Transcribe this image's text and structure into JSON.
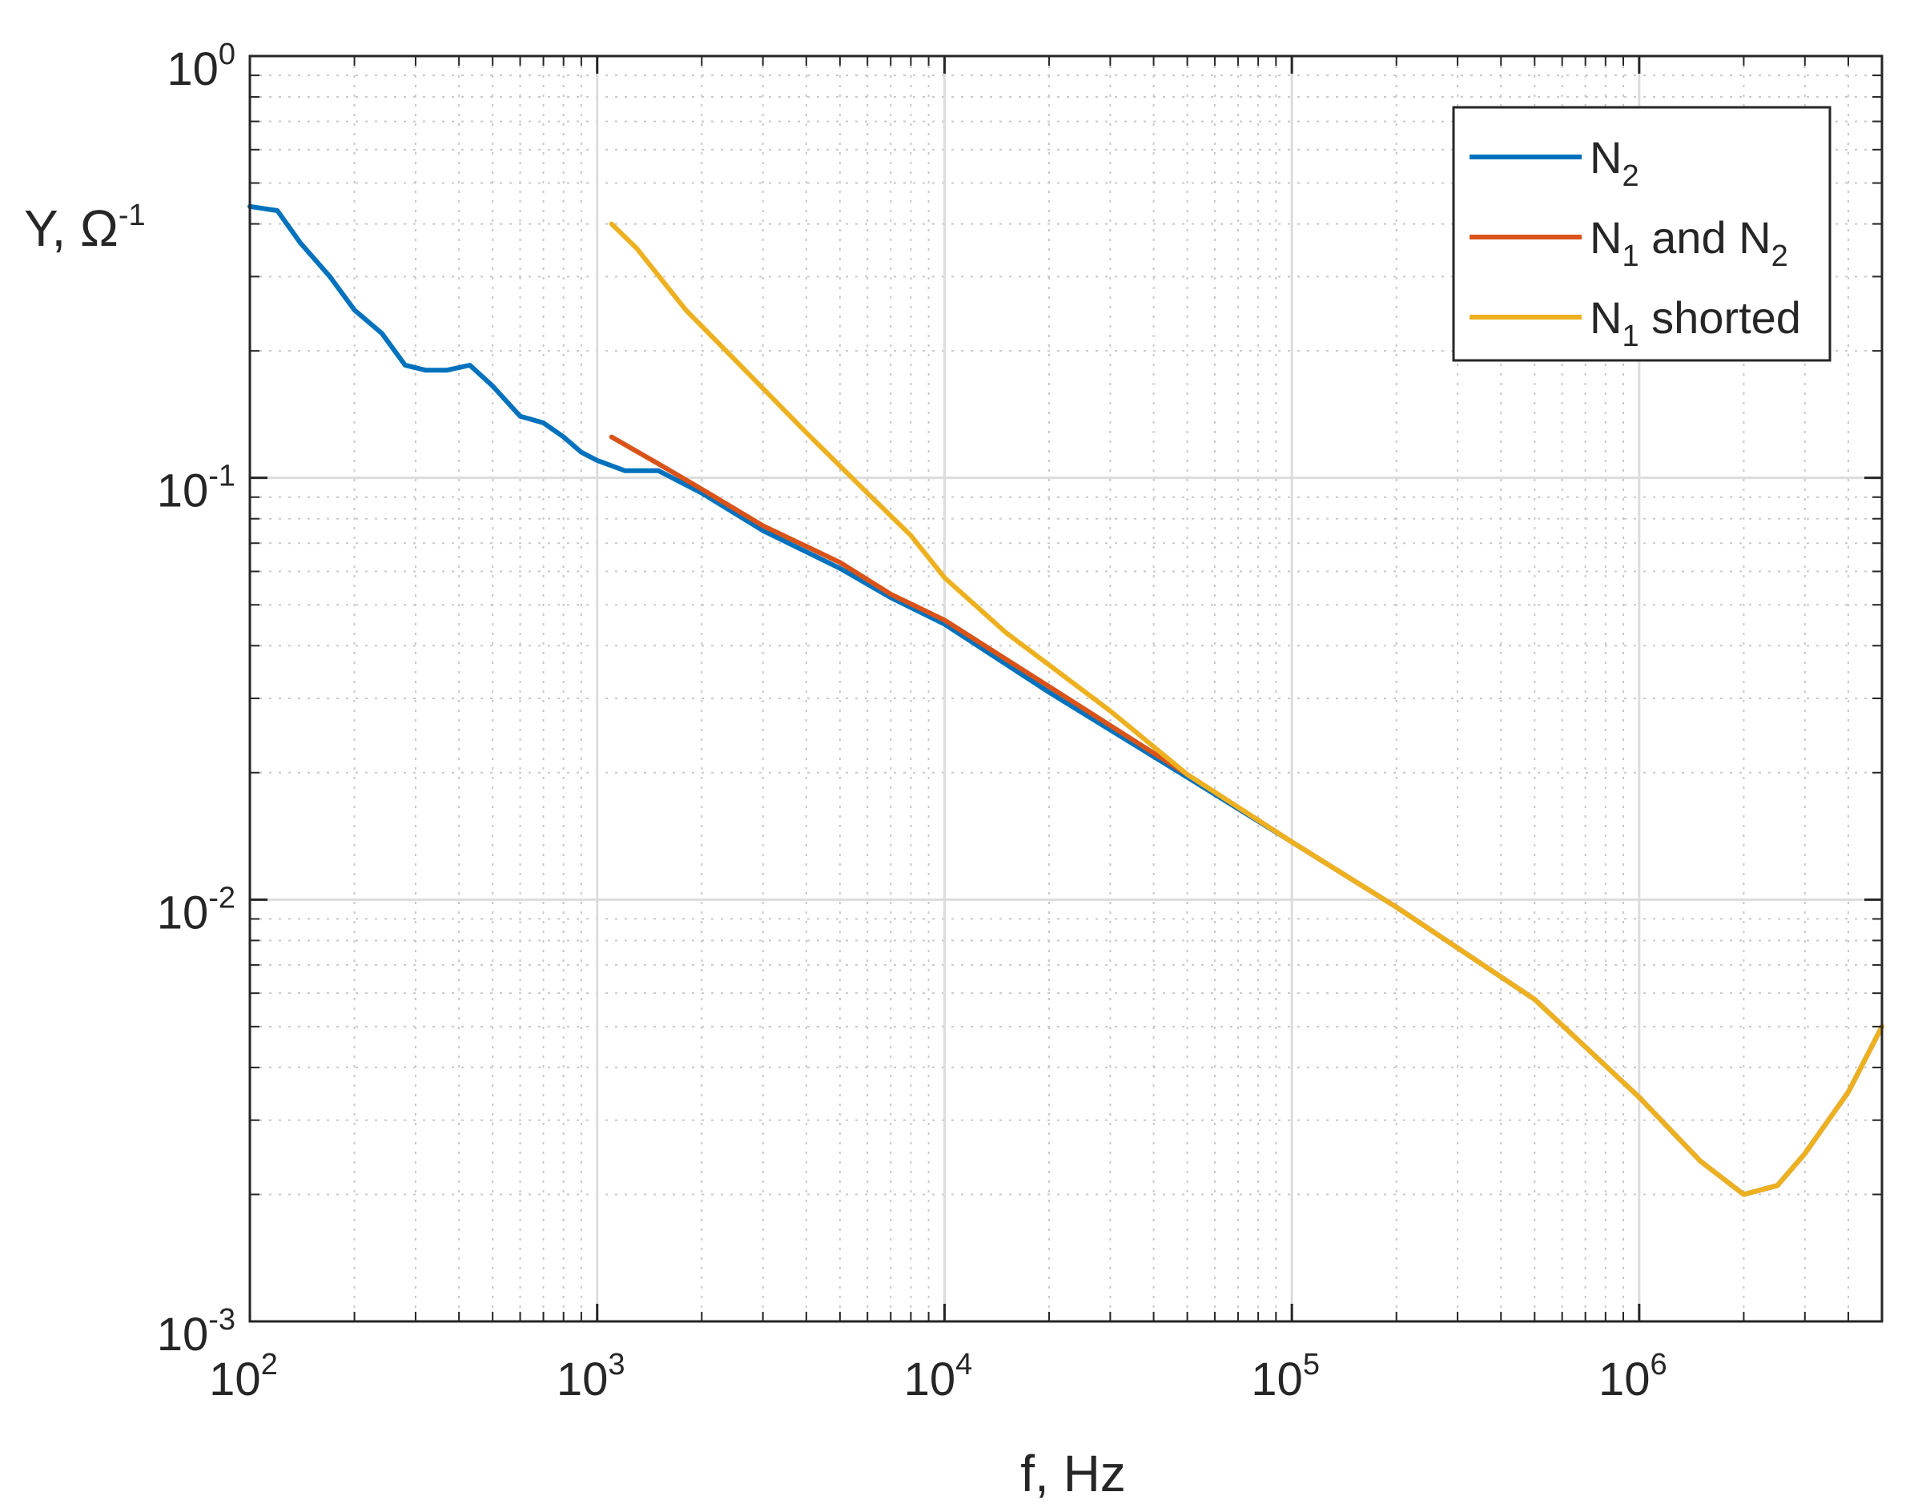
{
  "chart_data": {
    "type": "line",
    "title": "",
    "xlabel": "f, Hz",
    "ylabel": {
      "base": "Y, Ω",
      "sup": "-1"
    },
    "xscale": "log",
    "yscale": "log",
    "xlim": [
      100,
      5000000
    ],
    "ylim": [
      0.001,
      1
    ],
    "grid": true,
    "legend_position": "top-right",
    "x_ticks": [
      {
        "value": 100,
        "base": "10",
        "exp": "2"
      },
      {
        "value": 1000,
        "base": "10",
        "exp": "3"
      },
      {
        "value": 10000,
        "base": "10",
        "exp": "4"
      },
      {
        "value": 100000,
        "base": "10",
        "exp": "5"
      },
      {
        "value": 1000000,
        "base": "10",
        "exp": "6"
      }
    ],
    "y_ticks": [
      {
        "value": 0.001,
        "base": "10",
        "exp": "-3"
      },
      {
        "value": 0.01,
        "base": "10",
        "exp": "-2"
      },
      {
        "value": 0.1,
        "base": "10",
        "exp": "-1"
      },
      {
        "value": 1,
        "base": "10",
        "exp": "0"
      }
    ],
    "series": [
      {
        "name": "N2",
        "label_main": "N",
        "label_sub": "2",
        "label_rest": "",
        "color": "#0072BD",
        "x": [
          100,
          120,
          140,
          170,
          200,
          240,
          280,
          320,
          370,
          430,
          500,
          600,
          700,
          800,
          900,
          1000,
          1200,
          1500,
          2000,
          3000,
          5000,
          7000,
          10000,
          20000,
          50000,
          100000,
          200000,
          500000,
          1000000,
          1500000,
          2000000,
          2500000,
          3000000,
          4000000,
          5000000
        ],
        "y": [
          0.44,
          0.43,
          0.36,
          0.3,
          0.25,
          0.22,
          0.185,
          0.18,
          0.18,
          0.185,
          0.165,
          0.14,
          0.135,
          0.125,
          0.115,
          0.11,
          0.104,
          0.104,
          0.092,
          0.075,
          0.061,
          0.052,
          0.045,
          0.031,
          0.0195,
          0.0137,
          0.0096,
          0.0058,
          0.0034,
          0.0024,
          0.002,
          0.0021,
          0.0025,
          0.0035,
          0.005
        ]
      },
      {
        "name": "N1 and N2",
        "label_main": "N",
        "label_sub": "1",
        "label_rest": " and N",
        "label_sub2": "2",
        "color": "#D95319",
        "x": [
          1100,
          1500,
          2000,
          3000,
          5000,
          7000,
          10000,
          20000,
          50000,
          100000,
          200000,
          500000,
          1000000,
          1500000,
          2000000,
          2500000,
          3000000,
          4000000,
          5000000
        ],
        "y": [
          0.125,
          0.108,
          0.094,
          0.077,
          0.063,
          0.053,
          0.046,
          0.032,
          0.0198,
          0.0137,
          0.0096,
          0.0058,
          0.0034,
          0.0024,
          0.002,
          0.0021,
          0.0025,
          0.0035,
          0.005
        ]
      },
      {
        "name": "N1 shorted",
        "label_main": "N",
        "label_sub": "1",
        "label_rest": " shorted",
        "color": "#EDB120",
        "x": [
          1100,
          1300,
          1800,
          2500,
          4000,
          6000,
          8000,
          10000,
          15000,
          20000,
          30000,
          50000,
          100000,
          200000,
          500000,
          1000000,
          1500000,
          2000000,
          2500000,
          3000000,
          4000000,
          5000000
        ],
        "y": [
          0.4,
          0.35,
          0.25,
          0.19,
          0.128,
          0.092,
          0.073,
          0.058,
          0.043,
          0.036,
          0.028,
          0.0198,
          0.0137,
          0.0096,
          0.0058,
          0.0034,
          0.0024,
          0.002,
          0.0021,
          0.0025,
          0.0035,
          0.005
        ]
      }
    ]
  }
}
